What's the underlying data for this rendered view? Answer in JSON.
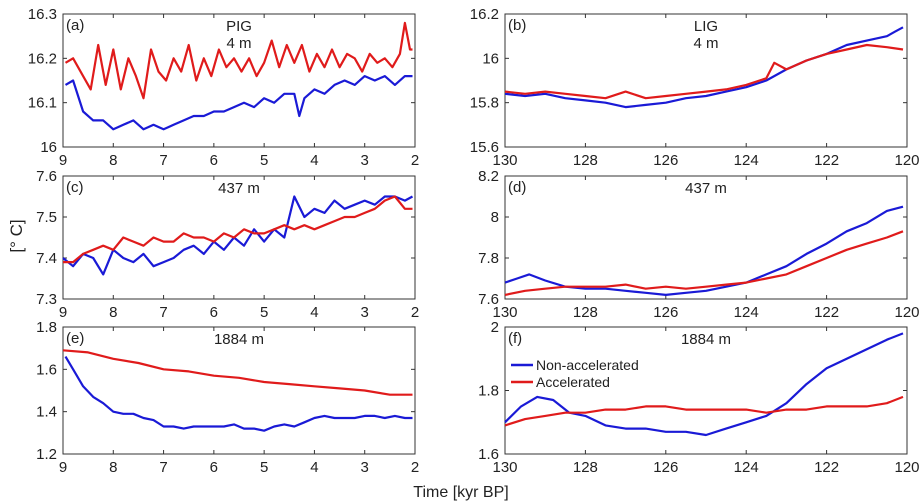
{
  "figure": {
    "ylabel": "[° C]",
    "xlabel": "Time [kyr BP]"
  },
  "colors": {
    "non_accelerated": "#1a1ad6",
    "accelerated": "#e01b1b"
  },
  "legend": {
    "items": [
      "Non-accelerated",
      "Accelerated"
    ],
    "panel": "f",
    "placement": "top-left"
  },
  "chart_data": [
    {
      "id": "a",
      "type": "line",
      "panel_label": "(a)",
      "title_lines": [
        "PIG",
        "4 m"
      ],
      "xlim": [
        9,
        2
      ],
      "ylim": [
        16.0,
        16.3
      ],
      "xticks": [
        9,
        8,
        7,
        6,
        5,
        4,
        3,
        2
      ],
      "xtick_labels": [
        "9",
        "8",
        "7",
        "6",
        "5",
        "4",
        "3",
        "2"
      ],
      "yticks": [
        16.0,
        16.1,
        16.2,
        16.3
      ],
      "ytick_labels": [
        "16",
        "16.1",
        "16.2",
        "16.3"
      ],
      "series": [
        {
          "key": "non_accelerated",
          "x": [
            8.95,
            8.8,
            8.6,
            8.4,
            8.2,
            8.0,
            7.8,
            7.6,
            7.4,
            7.2,
            7.0,
            6.8,
            6.6,
            6.4,
            6.2,
            6.0,
            5.8,
            5.6,
            5.4,
            5.2,
            5.0,
            4.8,
            4.6,
            4.4,
            4.3,
            4.2,
            4.0,
            3.8,
            3.6,
            3.4,
            3.2,
            3.0,
            2.8,
            2.6,
            2.4,
            2.2,
            2.05
          ],
          "y": [
            16.14,
            16.15,
            16.08,
            16.06,
            16.06,
            16.04,
            16.05,
            16.06,
            16.04,
            16.05,
            16.04,
            16.05,
            16.06,
            16.07,
            16.07,
            16.08,
            16.08,
            16.09,
            16.1,
            16.09,
            16.11,
            16.1,
            16.12,
            16.12,
            16.07,
            16.11,
            16.13,
            16.12,
            16.14,
            16.15,
            16.14,
            16.16,
            16.15,
            16.16,
            16.14,
            16.16,
            16.16
          ]
        },
        {
          "key": "accelerated",
          "x": [
            8.95,
            8.8,
            8.6,
            8.45,
            8.3,
            8.15,
            8.0,
            7.85,
            7.7,
            7.55,
            7.4,
            7.25,
            7.1,
            6.95,
            6.8,
            6.65,
            6.5,
            6.35,
            6.2,
            6.05,
            5.9,
            5.75,
            5.6,
            5.45,
            5.3,
            5.15,
            5.0,
            4.85,
            4.7,
            4.55,
            4.4,
            4.25,
            4.1,
            3.95,
            3.8,
            3.65,
            3.5,
            3.35,
            3.2,
            3.05,
            2.9,
            2.75,
            2.6,
            2.45,
            2.3,
            2.2,
            2.1,
            2.05
          ],
          "y": [
            16.19,
            16.2,
            16.16,
            16.13,
            16.23,
            16.14,
            16.22,
            16.13,
            16.2,
            16.16,
            16.11,
            16.22,
            16.17,
            16.15,
            16.2,
            16.17,
            16.23,
            16.15,
            16.2,
            16.16,
            16.22,
            16.18,
            16.2,
            16.17,
            16.2,
            16.16,
            16.19,
            16.24,
            16.18,
            16.23,
            16.19,
            16.23,
            16.17,
            16.21,
            16.18,
            16.22,
            16.18,
            16.21,
            16.2,
            16.17,
            16.21,
            16.19,
            16.2,
            16.18,
            16.21,
            16.28,
            16.22,
            16.22
          ]
        }
      ]
    },
    {
      "id": "b",
      "type": "line",
      "panel_label": "(b)",
      "title_lines": [
        "LIG",
        "4 m"
      ],
      "xlim": [
        130,
        120
      ],
      "ylim": [
        15.6,
        16.2
      ],
      "xticks": [
        130,
        128,
        126,
        124,
        122,
        120
      ],
      "xtick_labels": [
        "130",
        "128",
        "126",
        "124",
        "122",
        "120"
      ],
      "yticks": [
        15.6,
        15.8,
        16.0,
        16.2
      ],
      "ytick_labels": [
        "15.6",
        "15.8",
        "16",
        "16.2"
      ],
      "series": [
        {
          "key": "non_accelerated",
          "x": [
            130,
            129.5,
            129,
            128.5,
            128,
            127.5,
            127,
            126.5,
            126,
            125.5,
            125,
            124.5,
            124,
            123.5,
            123,
            122.5,
            122,
            121.5,
            121,
            120.5,
            120.3,
            120.1
          ],
          "y": [
            15.84,
            15.83,
            15.84,
            15.82,
            15.81,
            15.8,
            15.78,
            15.79,
            15.8,
            15.82,
            15.83,
            15.85,
            15.87,
            15.9,
            15.95,
            15.99,
            16.02,
            16.06,
            16.08,
            16.1,
            16.12,
            16.14
          ]
        },
        {
          "key": "accelerated",
          "x": [
            130,
            129.5,
            129,
            128.5,
            128,
            127.5,
            127,
            126.5,
            126,
            125.5,
            125,
            124.5,
            124,
            123.5,
            123.3,
            123,
            122.5,
            122,
            121.5,
            121,
            120.5,
            120.1
          ],
          "y": [
            15.85,
            15.84,
            15.85,
            15.84,
            15.83,
            15.82,
            15.85,
            15.82,
            15.83,
            15.84,
            15.85,
            15.86,
            15.88,
            15.91,
            15.98,
            15.95,
            15.99,
            16.02,
            16.04,
            16.06,
            16.05,
            16.04
          ]
        }
      ]
    },
    {
      "id": "c",
      "type": "line",
      "panel_label": "(c)",
      "title_lines": [
        "437 m"
      ],
      "xlim": [
        9,
        2
      ],
      "ylim": [
        7.3,
        7.6
      ],
      "xticks": [
        9,
        8,
        7,
        6,
        5,
        4,
        3,
        2
      ],
      "xtick_labels": [
        "9",
        "8",
        "7",
        "6",
        "5",
        "4",
        "3",
        "2"
      ],
      "yticks": [
        7.3,
        7.4,
        7.5,
        7.6
      ],
      "ytick_labels": [
        "7.3",
        "7.4",
        "7.5",
        "7.6"
      ],
      "series": [
        {
          "key": "non_accelerated",
          "x": [
            9.0,
            8.8,
            8.6,
            8.4,
            8.2,
            8.0,
            7.8,
            7.6,
            7.4,
            7.2,
            7.0,
            6.8,
            6.6,
            6.4,
            6.2,
            6.0,
            5.8,
            5.6,
            5.4,
            5.2,
            5.0,
            4.8,
            4.6,
            4.4,
            4.2,
            4.0,
            3.8,
            3.6,
            3.4,
            3.2,
            3.0,
            2.8,
            2.6,
            2.4,
            2.2,
            2.05
          ],
          "y": [
            7.4,
            7.38,
            7.41,
            7.4,
            7.36,
            7.42,
            7.4,
            7.39,
            7.41,
            7.38,
            7.39,
            7.4,
            7.42,
            7.43,
            7.41,
            7.44,
            7.42,
            7.45,
            7.43,
            7.47,
            7.44,
            7.47,
            7.45,
            7.55,
            7.5,
            7.52,
            7.51,
            7.54,
            7.52,
            7.53,
            7.54,
            7.53,
            7.55,
            7.55,
            7.54,
            7.55
          ]
        },
        {
          "key": "accelerated",
          "x": [
            9.0,
            8.8,
            8.6,
            8.4,
            8.2,
            8.0,
            7.8,
            7.6,
            7.4,
            7.2,
            7.0,
            6.8,
            6.6,
            6.4,
            6.2,
            6.0,
            5.8,
            5.6,
            5.4,
            5.2,
            5.0,
            4.8,
            4.6,
            4.4,
            4.2,
            4.0,
            3.8,
            3.6,
            3.4,
            3.2,
            3.0,
            2.8,
            2.6,
            2.4,
            2.2,
            2.05
          ],
          "y": [
            7.39,
            7.39,
            7.41,
            7.42,
            7.43,
            7.42,
            7.45,
            7.44,
            7.43,
            7.45,
            7.44,
            7.44,
            7.46,
            7.45,
            7.45,
            7.44,
            7.46,
            7.45,
            7.47,
            7.46,
            7.46,
            7.47,
            7.48,
            7.47,
            7.48,
            7.47,
            7.48,
            7.49,
            7.5,
            7.5,
            7.51,
            7.52,
            7.54,
            7.55,
            7.52,
            7.52
          ]
        }
      ]
    },
    {
      "id": "d",
      "type": "line",
      "panel_label": "(d)",
      "title_lines": [
        "437 m"
      ],
      "xlim": [
        130,
        120
      ],
      "ylim": [
        7.6,
        8.2
      ],
      "xticks": [
        130,
        128,
        126,
        124,
        122,
        120
      ],
      "xtick_labels": [
        "130",
        "128",
        "126",
        "124",
        "122",
        "120"
      ],
      "yticks": [
        7.6,
        7.8,
        8.0,
        8.2
      ],
      "ytick_labels": [
        "7.6",
        "7.8",
        "8",
        "8.2"
      ],
      "series": [
        {
          "key": "non_accelerated",
          "x": [
            130,
            129.7,
            129.4,
            129,
            128.5,
            128,
            127.5,
            127,
            126.5,
            126,
            125.5,
            125,
            124.5,
            124,
            123.5,
            123,
            122.5,
            122,
            121.5,
            121,
            120.5,
            120.1
          ],
          "y": [
            7.68,
            7.7,
            7.72,
            7.69,
            7.66,
            7.65,
            7.65,
            7.64,
            7.63,
            7.62,
            7.63,
            7.64,
            7.66,
            7.68,
            7.72,
            7.76,
            7.82,
            7.87,
            7.93,
            7.97,
            8.03,
            8.05
          ]
        },
        {
          "key": "accelerated",
          "x": [
            130,
            129.5,
            129,
            128.5,
            128,
            127.5,
            127,
            126.5,
            126,
            125.5,
            125,
            124.5,
            124,
            123.5,
            123,
            122.5,
            122,
            121.5,
            121,
            120.5,
            120.1
          ],
          "y": [
            7.62,
            7.64,
            7.65,
            7.66,
            7.66,
            7.66,
            7.67,
            7.65,
            7.66,
            7.65,
            7.66,
            7.67,
            7.68,
            7.7,
            7.72,
            7.76,
            7.8,
            7.84,
            7.87,
            7.9,
            7.93
          ]
        }
      ]
    },
    {
      "id": "e",
      "type": "line",
      "panel_label": "(e)",
      "title_lines": [
        "1884 m"
      ],
      "xlim": [
        9,
        2
      ],
      "ylim": [
        1.2,
        1.8
      ],
      "xticks": [
        9,
        8,
        7,
        6,
        5,
        4,
        3,
        2
      ],
      "xtick_labels": [
        "9",
        "8",
        "7",
        "6",
        "5",
        "4",
        "3",
        "2"
      ],
      "yticks": [
        1.2,
        1.4,
        1.6,
        1.8
      ],
      "ytick_labels": [
        "1.2",
        "1.4",
        "1.6",
        "1.8"
      ],
      "series": [
        {
          "key": "non_accelerated",
          "x": [
            8.95,
            8.8,
            8.6,
            8.4,
            8.2,
            8.0,
            7.8,
            7.6,
            7.4,
            7.2,
            7.0,
            6.8,
            6.6,
            6.4,
            6.2,
            6.0,
            5.8,
            5.6,
            5.4,
            5.2,
            5.0,
            4.8,
            4.6,
            4.4,
            4.2,
            4.0,
            3.8,
            3.6,
            3.4,
            3.2,
            3.0,
            2.8,
            2.6,
            2.4,
            2.2,
            2.05
          ],
          "y": [
            1.66,
            1.6,
            1.52,
            1.47,
            1.44,
            1.4,
            1.39,
            1.39,
            1.37,
            1.36,
            1.33,
            1.33,
            1.32,
            1.33,
            1.33,
            1.33,
            1.33,
            1.34,
            1.32,
            1.32,
            1.31,
            1.33,
            1.34,
            1.33,
            1.35,
            1.37,
            1.38,
            1.37,
            1.37,
            1.37,
            1.38,
            1.38,
            1.37,
            1.38,
            1.37,
            1.37
          ]
        },
        {
          "key": "accelerated",
          "x": [
            9.0,
            8.5,
            8.0,
            7.5,
            7.0,
            6.5,
            6.0,
            5.5,
            5.0,
            4.5,
            4.0,
            3.5,
            3.0,
            2.5,
            2.05
          ],
          "y": [
            1.69,
            1.68,
            1.65,
            1.63,
            1.6,
            1.59,
            1.57,
            1.56,
            1.54,
            1.53,
            1.52,
            1.51,
            1.5,
            1.48,
            1.48
          ]
        }
      ]
    },
    {
      "id": "f",
      "type": "line",
      "panel_label": "(f)",
      "title_lines": [
        "1884 m"
      ],
      "xlim": [
        130,
        120
      ],
      "ylim": [
        1.6,
        2.0
      ],
      "xticks": [
        130,
        128,
        126,
        124,
        122,
        120
      ],
      "xtick_labels": [
        "130",
        "128",
        "126",
        "124",
        "122",
        "120"
      ],
      "yticks": [
        1.6,
        1.8,
        2.0
      ],
      "ytick_labels": [
        "1.6",
        "1.8",
        "2"
      ],
      "series": [
        {
          "key": "non_accelerated",
          "x": [
            130,
            129.6,
            129.2,
            128.8,
            128.4,
            128,
            127.5,
            127,
            126.5,
            126,
            125.5,
            125,
            124.5,
            124,
            123.5,
            123,
            122.5,
            122,
            121.5,
            121,
            120.5,
            120.1
          ],
          "y": [
            1.7,
            1.75,
            1.78,
            1.77,
            1.73,
            1.72,
            1.69,
            1.68,
            1.68,
            1.67,
            1.67,
            1.66,
            1.68,
            1.7,
            1.72,
            1.76,
            1.82,
            1.87,
            1.9,
            1.93,
            1.96,
            1.98
          ]
        },
        {
          "key": "accelerated",
          "x": [
            130,
            129.5,
            129,
            128.5,
            128,
            127.5,
            127,
            126.5,
            126,
            125.5,
            125,
            124.5,
            124,
            123.5,
            123,
            122.5,
            122,
            121.5,
            121,
            120.5,
            120.1
          ],
          "y": [
            1.69,
            1.71,
            1.72,
            1.73,
            1.73,
            1.74,
            1.74,
            1.75,
            1.75,
            1.74,
            1.74,
            1.74,
            1.74,
            1.73,
            1.74,
            1.74,
            1.75,
            1.75,
            1.75,
            1.76,
            1.78
          ]
        }
      ]
    }
  ]
}
